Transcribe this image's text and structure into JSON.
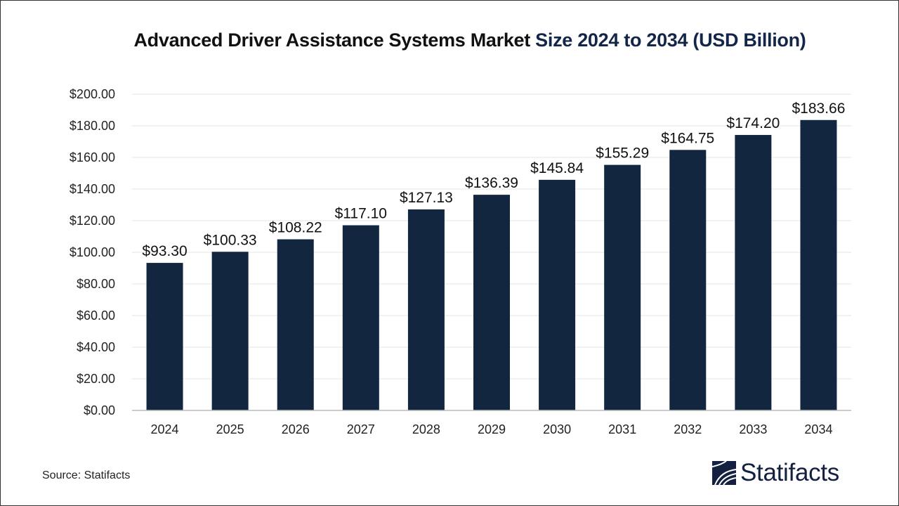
{
  "title": {
    "part1": "Advanced Driver Assistance Systems Market ",
    "part2": "Size 2024 to 2034  (USD Billion)"
  },
  "source": "Source: Statifacts",
  "logo": {
    "text": "Statifacts"
  },
  "colors": {
    "bar": "#13263f",
    "title_accent": "#13264a",
    "grid": "#e6e6e6"
  },
  "chart_data": {
    "type": "bar",
    "title": "Advanced Driver Assistance Systems Market Size 2024 to 2034  (USD Billion)",
    "categories": [
      "2024",
      "2025",
      "2026",
      "2027",
      "2028",
      "2029",
      "2030",
      "2031",
      "2032",
      "2033",
      "2034"
    ],
    "values": [
      93.3,
      100.33,
      108.22,
      117.1,
      127.13,
      136.39,
      145.84,
      155.29,
      164.75,
      174.2,
      183.66
    ],
    "data_labels": [
      "$93.30",
      "$100.33",
      "$108.22",
      "$117.10",
      "$127.13",
      "$136.39",
      "$145.84",
      "$155.29",
      "$164.75",
      "$174.20",
      "$183.66"
    ],
    "y_ticks": [
      "$0.00",
      "$20.00",
      "$40.00",
      "$60.00",
      "$80.00",
      "$100.00",
      "$120.00",
      "$140.00",
      "$160.00",
      "$180.00",
      "$200.00"
    ],
    "ylim": [
      0,
      200
    ],
    "xlabel": "",
    "ylabel": "",
    "grid": true,
    "legend": "none"
  }
}
